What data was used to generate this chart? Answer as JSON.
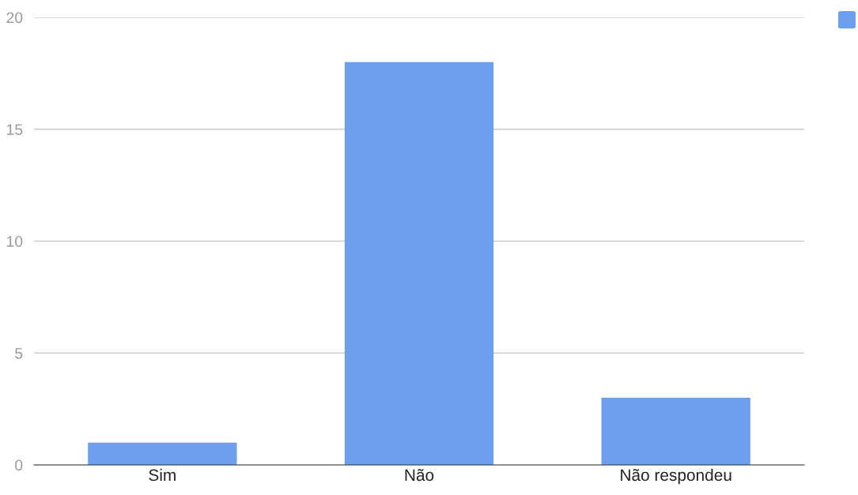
{
  "chart_data": {
    "type": "bar",
    "categories": [
      "Sim",
      "Não",
      "Não respondeu"
    ],
    "series": [
      {
        "color": "#6d9eeb",
        "values": [
          1,
          18,
          3
        ]
      }
    ],
    "ylim": [
      0,
      20
    ],
    "yticks": [
      0,
      5,
      10,
      15,
      20
    ],
    "grid": "y"
  }
}
